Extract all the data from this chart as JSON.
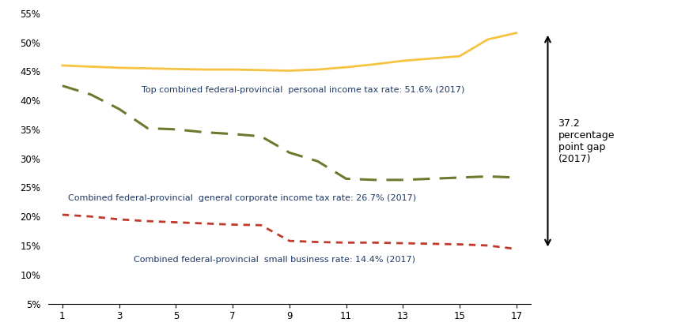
{
  "x": [
    1,
    2,
    3,
    4,
    5,
    6,
    7,
    8,
    9,
    10,
    11,
    12,
    13,
    14,
    15,
    16,
    17
  ],
  "personal_income": [
    46.0,
    45.8,
    45.6,
    45.5,
    45.4,
    45.3,
    45.3,
    45.2,
    45.1,
    45.3,
    45.7,
    46.2,
    46.8,
    47.2,
    47.6,
    50.5,
    51.6
  ],
  "corporate_income": [
    42.5,
    41.0,
    38.5,
    35.2,
    35.0,
    34.5,
    34.2,
    33.8,
    31.0,
    29.5,
    26.5,
    26.3,
    26.3,
    26.5,
    26.7,
    26.9,
    26.7
  ],
  "small_business": [
    20.3,
    20.0,
    19.5,
    19.2,
    19.0,
    18.8,
    18.6,
    18.5,
    15.8,
    15.6,
    15.5,
    15.5,
    15.4,
    15.3,
    15.2,
    15.0,
    14.4
  ],
  "personal_color": "#f5c242",
  "corporate_color": "#6b7a2e",
  "small_business_color": "#c0392b",
  "annotation_personal": "Top combined federal-provincial  personal income tax rate: 51.6% (2017)",
  "annotation_corporate": "Combined federal-provincial  general corporate income tax rate: 26.7% (2017)",
  "annotation_small": "Combined federal-provincial  small business rate: 14.4% (2017)",
  "arrow_text": "37.2\npercentage\npoint gap\n(2017)",
  "ylim_bottom": 5,
  "ylim_top": 55,
  "yticks": [
    5,
    10,
    15,
    20,
    25,
    30,
    35,
    40,
    45,
    50,
    55
  ],
  "xticks": [
    1,
    3,
    5,
    7,
    9,
    11,
    13,
    15,
    17
  ],
  "background_color": "#ffffff",
  "text_color": "#1f3864",
  "annotation_fontsize": 8.0,
  "tick_fontsize": 8.5
}
